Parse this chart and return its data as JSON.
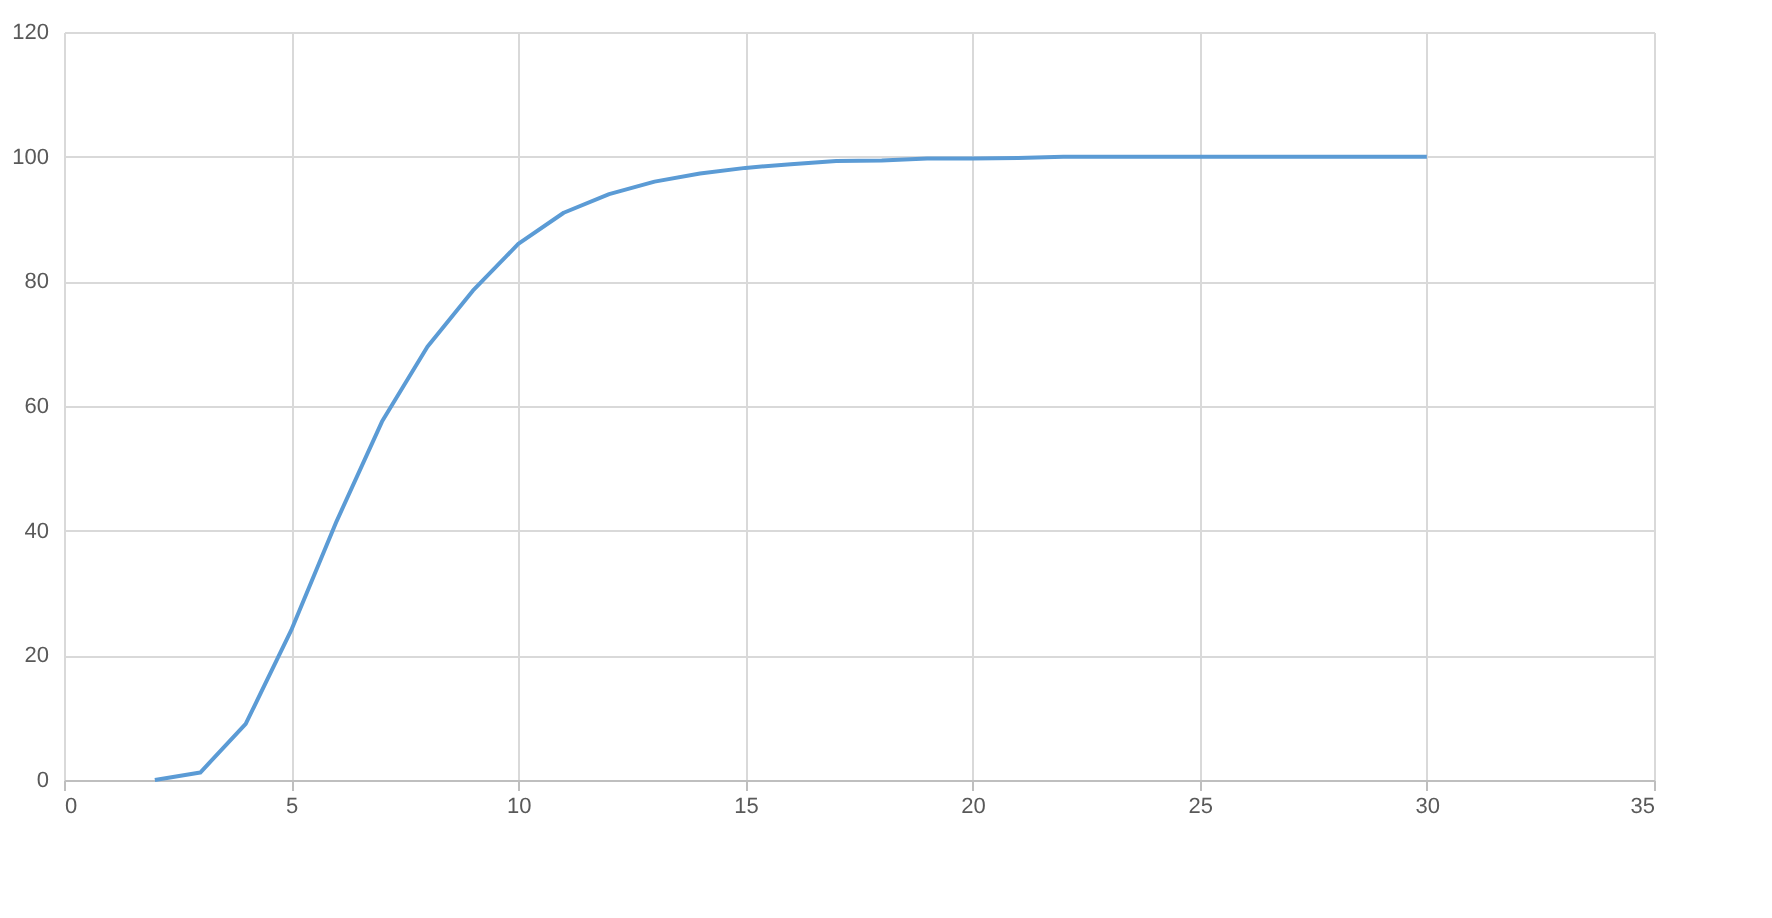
{
  "chart_data": {
    "type": "line",
    "x": [
      2,
      3,
      4,
      5,
      6,
      7,
      8,
      9,
      10,
      11,
      12,
      13,
      14,
      15,
      16,
      17,
      18,
      19,
      20,
      21,
      22,
      23,
      24,
      25,
      26,
      27,
      28,
      29,
      30
    ],
    "series": [
      {
        "color": "#5b9bd5",
        "values": [
          0,
          1.2,
          9,
          24,
          41.5,
          57.5,
          69.5,
          78.5,
          86,
          91,
          94,
          96,
          97.3,
          98.2,
          98.8,
          99.3,
          99.4,
          99.7,
          99.7,
          99.8,
          100,
          100,
          100,
          100,
          100,
          100,
          100,
          100,
          100
        ]
      }
    ],
    "xlim": [
      0,
      35
    ],
    "xticks": [
      0,
      5,
      10,
      15,
      20,
      25,
      30,
      35
    ],
    "ylim": [
      0,
      120
    ],
    "yticks": [
      0,
      20,
      40,
      60,
      80,
      100,
      120
    ],
    "grid": true,
    "legend": false,
    "marker": "none",
    "line_style": "solid"
  }
}
